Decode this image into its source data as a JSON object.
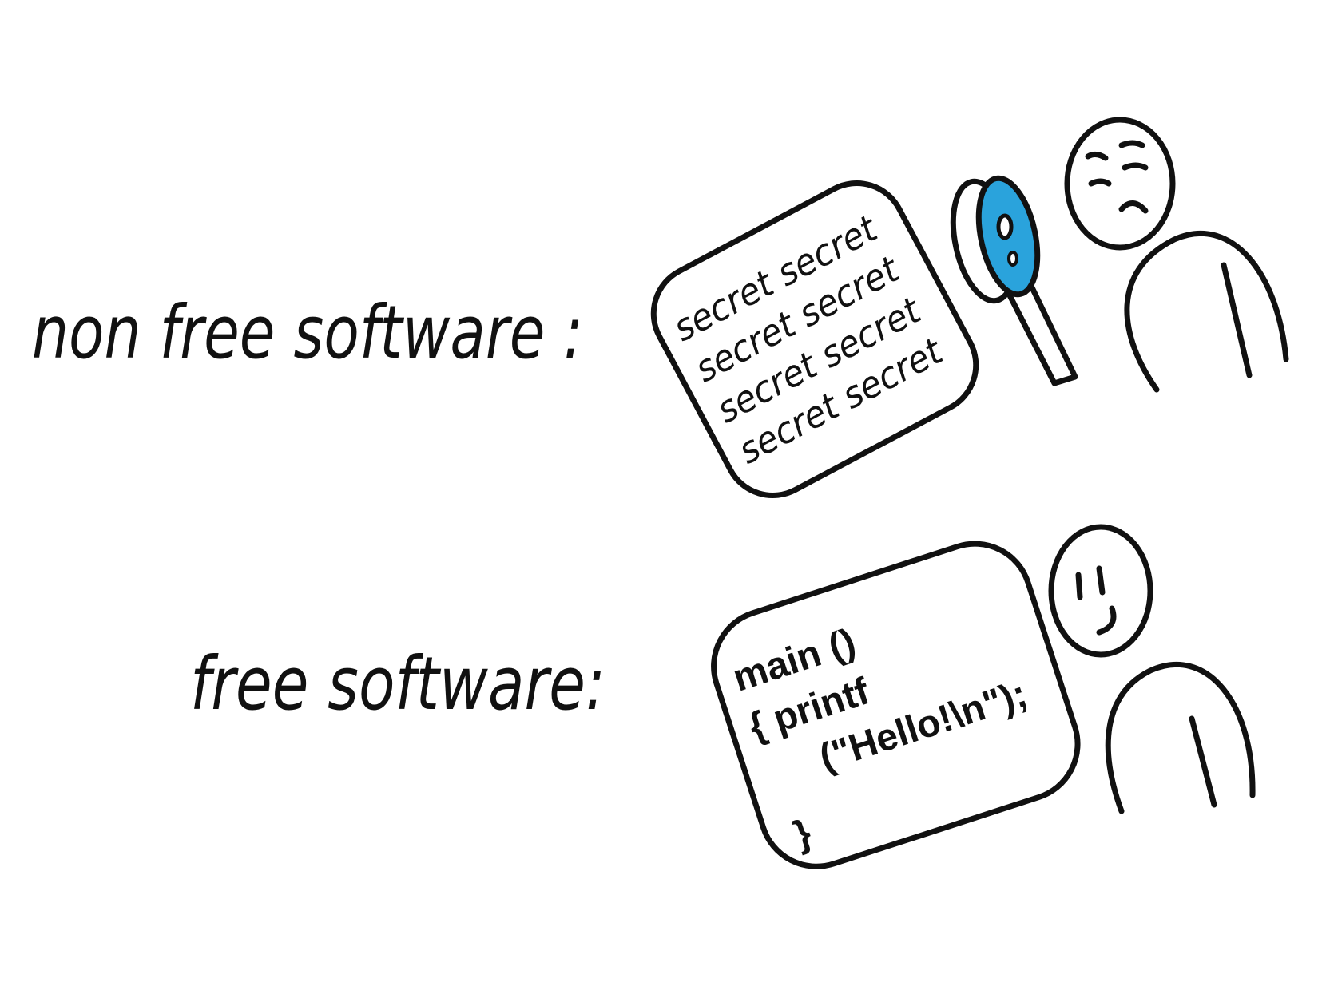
{
  "labels": {
    "nonfree": "non free software :",
    "free": "free software:"
  },
  "secret_doc": {
    "lines": [
      "secret secret",
      "secret secret",
      "secret secret",
      "secret secret"
    ]
  },
  "code_doc": {
    "line1": "main ()",
    "line2": "{  printf",
    "line3": "(\"Hello!\\n\");",
    "line4": "}"
  },
  "colors": {
    "ink": "#111111",
    "lens": "#2aa3dc",
    "background": "#ffffff"
  },
  "icons": {
    "magnifier": "magnifying-glass-icon",
    "frowning_person": "frowning-person-icon",
    "smiling_person": "smiling-person-icon"
  }
}
